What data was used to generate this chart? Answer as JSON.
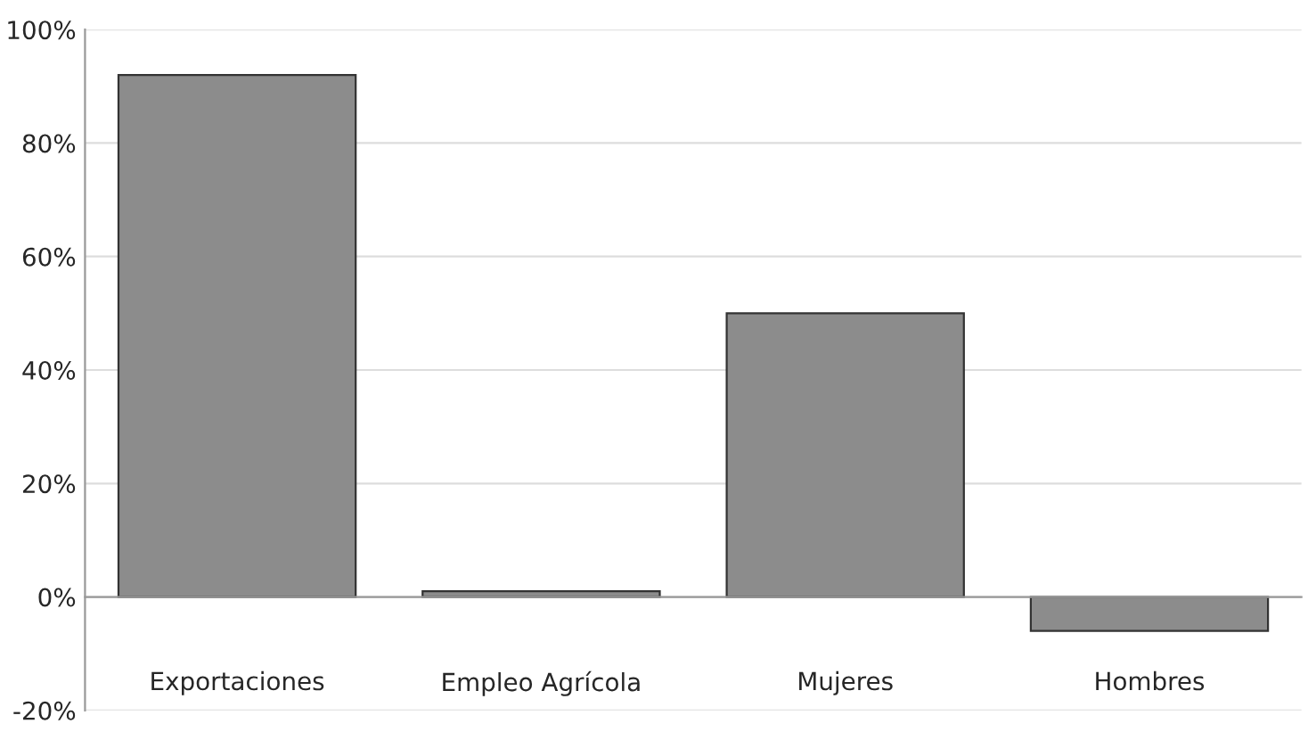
{
  "chart_data": {
    "type": "bar",
    "categories": [
      "Exportaciones",
      "Empleo Agrícola",
      "Mujeres",
      "Hombres"
    ],
    "values": [
      92,
      1,
      50,
      -6
    ],
    "color": "#8c8c8c",
    "ylim": [
      -20,
      100
    ],
    "yticks": [
      {
        "value": -20,
        "label": "-20%"
      },
      {
        "value": 0,
        "label": "0%"
      },
      {
        "value": 20,
        "label": "20%"
      },
      {
        "value": 40,
        "label": "40%"
      },
      {
        "value": 60,
        "label": "60%"
      },
      {
        "value": 80,
        "label": "80%"
      },
      {
        "value": 100,
        "label": "100%"
      }
    ],
    "grid": "y",
    "legend": false
  }
}
